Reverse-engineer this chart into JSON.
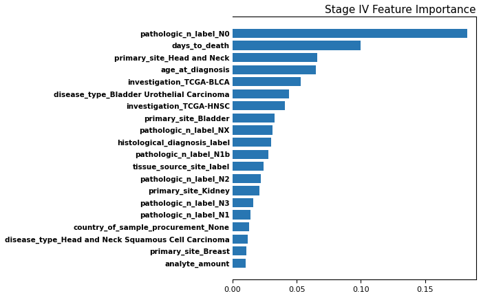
{
  "title": "Stage IV Feature Importance",
  "features": [
    "pathologic_n_label_N0",
    "days_to_death",
    "primary_site_Head and Neck",
    "age_at_diagnosis",
    "investigation_TCGA-BLCA",
    "disease_type_Bladder Urothelial Carcinoma",
    "investigation_TCGA-HNSC",
    "primary_site_Bladder",
    "pathologic_n_label_NX",
    "histological_diagnosis_label",
    "pathologic_n_label_N1b",
    "tissue_source_site_label",
    "pathologic_n_label_N2",
    "primary_site_Kidney",
    "pathologic_n_label_N3",
    "pathologic_n_label_N1",
    "country_of_sample_procurement_None",
    "disease_type_Head and Neck Squamous Cell Carcinoma",
    "primary_site_Breast",
    "analyte_amount"
  ],
  "values": [
    0.183,
    0.1,
    0.066,
    0.065,
    0.053,
    0.044,
    0.041,
    0.033,
    0.031,
    0.03,
    0.028,
    0.024,
    0.022,
    0.021,
    0.016,
    0.014,
    0.013,
    0.012,
    0.011,
    0.01
  ],
  "bar_color": "#2876b2",
  "title_fontsize": 11,
  "tick_fontsize": 7.5,
  "figsize": [
    6.99,
    4.33
  ],
  "dpi": 100,
  "xlim": [
    0.0,
    0.19
  ],
  "xticks": [
    0.0,
    0.05,
    0.1,
    0.15
  ]
}
